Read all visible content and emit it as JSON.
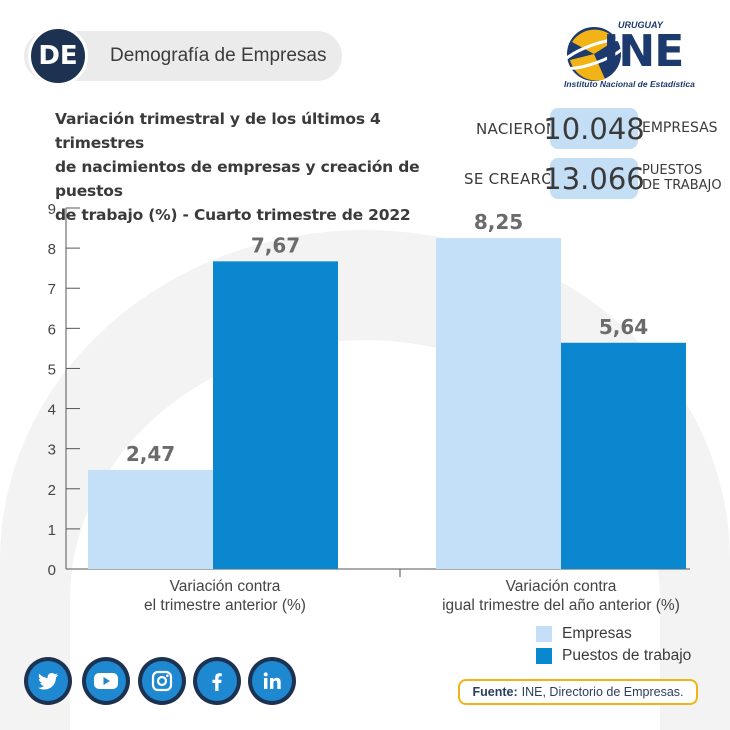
{
  "header": {
    "badge": "DE",
    "section_title": "Demografía de Empresas"
  },
  "logo": {
    "country": "URUGUAY",
    "brand": "INE",
    "subtitle": "Instituto Nacional de Estadística"
  },
  "title_lines": [
    "Variación trimestral y de los últimos 4 trimestres",
    "de nacimientos de empresas y creación de puestos",
    "de trabajo (%) - Cuarto trimestre de 2022"
  ],
  "stats": [
    {
      "label": "NACIERON",
      "value": "10.048",
      "unit_lines": [
        "EMPRESAS"
      ]
    },
    {
      "label": "SE CREARON",
      "value": "13.066",
      "unit_lines": [
        "PUESTOS",
        "DE TRABAJO"
      ]
    }
  ],
  "colors": {
    "empresas": "#c4e0f8",
    "puestos": "#0a87cf",
    "navy": "#1d3250",
    "accent_yellow": "#f2b316"
  },
  "chart_data": {
    "type": "bar",
    "title": "Variación trimestral y de los últimos 4 trimestres de nacimientos de empresas y creación de puestos de trabajo (%) - Cuarto trimestre de 2022",
    "categories": [
      [
        "Variación contra",
        "el trimestre anterior (%)"
      ],
      [
        "Variación contra",
        "igual trimestre del año anterior (%)"
      ]
    ],
    "series": [
      {
        "name": "Empresas",
        "values": [
          2.47,
          8.25
        ],
        "labels": [
          "2,47",
          "8,25"
        ]
      },
      {
        "name": "Puestos de trabajo",
        "values": [
          7.67,
          5.64
        ],
        "labels": [
          "7,67",
          "5,64"
        ]
      }
    ],
    "ylim": [
      0,
      9
    ],
    "yticks": [
      0,
      1,
      2,
      3,
      4,
      5,
      6,
      7,
      8,
      9
    ],
    "grid": false,
    "legend": "bottom-right"
  },
  "social": [
    "twitter-icon",
    "youtube-icon",
    "instagram-icon",
    "facebook-icon",
    "linkedin-icon"
  ],
  "source": {
    "label": "Fuente:",
    "text": "INE, Directorio de Empresas."
  }
}
